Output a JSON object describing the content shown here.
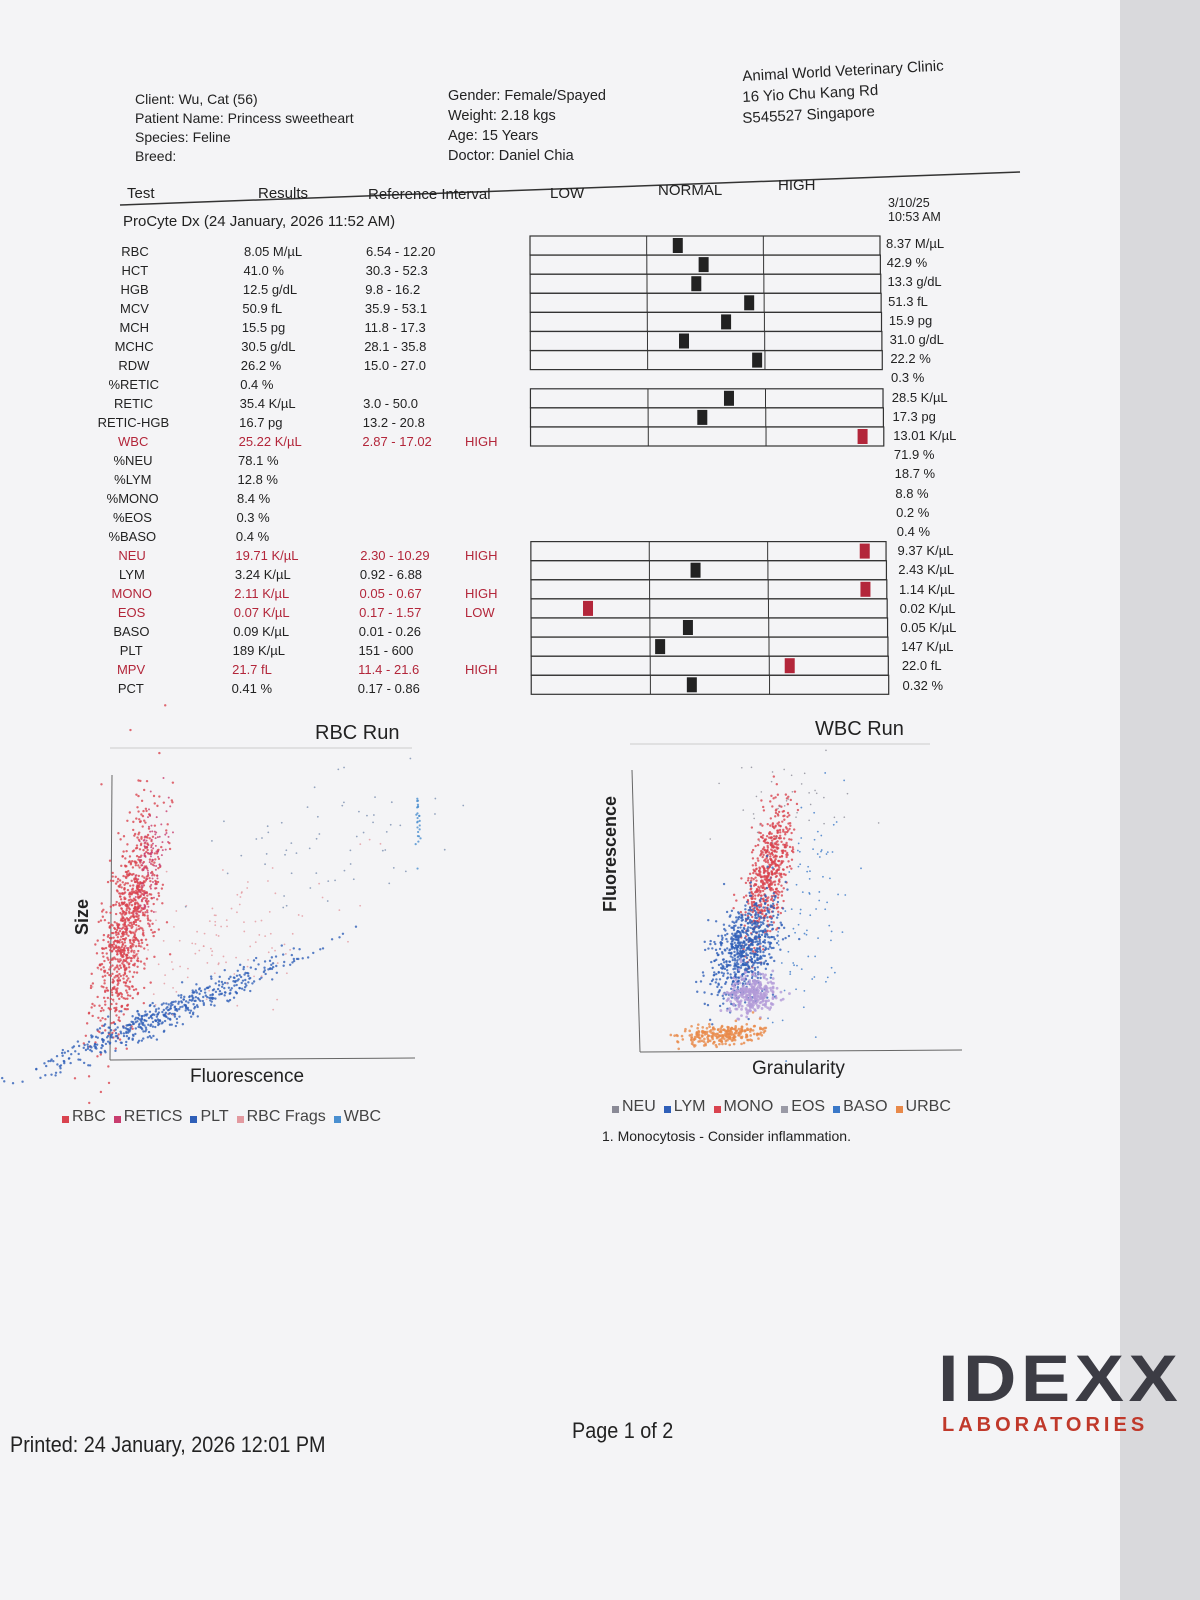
{
  "header": {
    "client": [
      "Client: Wu, Cat (56)",
      "Patient Name: Princess sweetheart",
      "Species: Feline",
      "Breed:"
    ],
    "patient": [
      "Gender: Female/Spayed",
      "Weight: 2.18 kgs",
      "Age: 15 Years",
      "Doctor: Daniel Chia"
    ],
    "clinic": [
      "Animal World Veterinary Clinic",
      "16 Yio Chu Kang Rd",
      "S545527 Singapore"
    ]
  },
  "table": {
    "columns": [
      "Test",
      "Results",
      "Reference Interval",
      "LOW",
      "NORMAL",
      "HIGH"
    ],
    "section": "ProCyte Dx (24 January, 2026 11:52 AM)",
    "previous_date": "3/10/25",
    "previous_time": "10:53 AM",
    "flag_color": "#b3263a",
    "rows": [
      {
        "test": "RBC",
        "result": "8.05 M/µL",
        "reference": "6.54 - 12.20",
        "previous": "8.37 M/µL"
      },
      {
        "test": "HCT",
        "result": "41.0 %",
        "reference": "30.3 - 52.3",
        "previous": "42.9 %"
      },
      {
        "test": "HGB",
        "result": "12.5 g/dL",
        "reference": "9.8 - 16.2",
        "previous": "13.3 g/dL"
      },
      {
        "test": "MCV",
        "result": "50.9 fL",
        "reference": "35.9 - 53.1",
        "previous": "51.3 fL"
      },
      {
        "test": "MCH",
        "result": "15.5 pg",
        "reference": "11.8 - 17.3",
        "previous": "15.9 pg"
      },
      {
        "test": "MCHC",
        "result": "30.5 g/dL",
        "reference": "28.1 - 35.8",
        "previous": "31.0 g/dL"
      },
      {
        "test": "RDW",
        "result": "26.2 %",
        "reference": "15.0 - 27.0",
        "previous": "22.2 %"
      },
      {
        "test": "%RETIC",
        "result": "0.4 %",
        "previous": "0.3 %"
      },
      {
        "test": "RETIC",
        "result": "35.4 K/µL",
        "reference": "3.0 - 50.0",
        "previous": "28.5 K/µL"
      },
      {
        "test": "RETIC-HGB",
        "result": "16.7 pg",
        "reference": "13.2 - 20.8",
        "previous": "17.3 pg"
      },
      {
        "test": "WBC",
        "result": "25.22 K/µL",
        "reference": "2.87 - 17.02",
        "flag": "HIGH",
        "previous": "13.01 K/µL"
      },
      {
        "test": "%NEU",
        "result": "78.1 %",
        "previous": "71.9 %"
      },
      {
        "test": "%LYM",
        "result": "12.8 %",
        "previous": "18.7 %"
      },
      {
        "test": "%MONO",
        "result": "8.4 %",
        "previous": "8.8 %"
      },
      {
        "test": "%EOS",
        "result": "0.3 %",
        "previous": "0.2 %"
      },
      {
        "test": "%BASO",
        "result": "0.4 %",
        "previous": "0.4 %"
      },
      {
        "test": "NEU",
        "result": "19.71 K/µL",
        "reference": "2.30 - 10.29",
        "flag": "HIGH",
        "previous": "9.37 K/µL"
      },
      {
        "test": "LYM",
        "result": "3.24 K/µL",
        "reference": "0.92 - 6.88",
        "previous": "2.43 K/µL"
      },
      {
        "test": "MONO",
        "result": "2.11 K/µL",
        "reference": "0.05 - 0.67",
        "flag": "HIGH",
        "previous": "1.14 K/µL"
      },
      {
        "test": "EOS",
        "result": "0.07 K/µL",
        "reference": "0.17 - 1.57",
        "flag": "LOW",
        "previous": "0.02 K/µL"
      },
      {
        "test": "BASO",
        "result": "0.09 K/µL",
        "reference": "0.01 - 0.26",
        "previous": "0.05 K/µL"
      },
      {
        "test": "PLT",
        "result": "189 K/µL",
        "reference": "151 - 600",
        "previous": "147 K/µL"
      },
      {
        "test": "MPV",
        "result": "21.7 fL",
        "reference": "11.4 - 21.6",
        "flag": "HIGH",
        "previous": "22.0 fL"
      },
      {
        "test": "PCT",
        "result": "0.41 %",
        "reference": "0.17 - 0.86",
        "previous": "0.32 %"
      }
    ]
  },
  "plots": [
    {
      "title": "RBC Run",
      "x_label": "Fluorescence",
      "y_label": "Size",
      "legend": [
        {
          "name": "RBC",
          "color": "#d9434f"
        },
        {
          "name": "RETICS",
          "color": "#c83c6e"
        },
        {
          "name": "PLT",
          "color": "#2f5fb8"
        },
        {
          "name": "RBC Frags",
          "color": "#e39aa0"
        },
        {
          "name": "WBC",
          "color": "#4a8fd0"
        }
      ]
    },
    {
      "title": "WBC Run",
      "x_label": "Granularity",
      "y_label": "Fluorescence",
      "legend": [
        {
          "name": "NEU",
          "color": "#8a8a96"
        },
        {
          "name": "LYM",
          "color": "#2f5fb8"
        },
        {
          "name": "MONO",
          "color": "#d9434f"
        },
        {
          "name": "EOS",
          "color": "#9a9aa6"
        },
        {
          "name": "BASO",
          "color": "#3a78c8"
        },
        {
          "name": "URBC",
          "color": "#e8894a"
        }
      ]
    }
  ],
  "note": "1. Monocytosis - Consider inflammation.",
  "footer": {
    "printed": "Printed: 24 January, 2026 12:01 PM",
    "page": "Page 1 of 2",
    "logo": "IDEXX",
    "logo_sub": "LABORATORIES"
  }
}
